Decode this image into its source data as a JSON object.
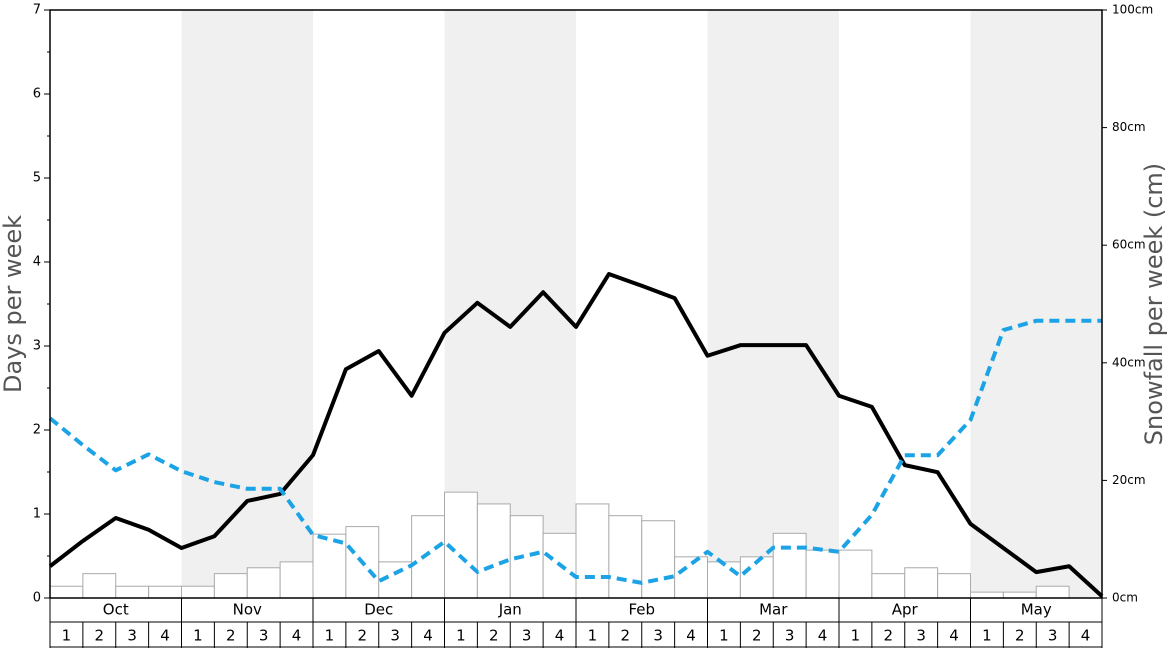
{
  "chart_data": {
    "type": "bar",
    "y_label": "Days per week",
    "y2_label": "Snowfall per week (cm)",
    "months": [
      "Oct",
      "Nov",
      "Dec",
      "Jan",
      "Feb",
      "Mar",
      "Apr",
      "May"
    ],
    "categories": [
      "1",
      "2",
      "3",
      "4",
      "1",
      "2",
      "3",
      "4",
      "1",
      "2",
      "3",
      "4",
      "1",
      "2",
      "3",
      "4",
      "1",
      "2",
      "3",
      "4",
      "1",
      "2",
      "3",
      "4",
      "1",
      "2",
      "3",
      "4",
      "1",
      "2",
      "3",
      "4"
    ],
    "values": [
      0.14,
      0.29,
      0.14,
      0.14,
      0.14,
      0.29,
      0.36,
      0.43,
      0.76,
      0.85,
      0.43,
      0.98,
      1.26,
      1.12,
      0.98,
      0.77,
      1.12,
      0.98,
      0.92,
      0.49,
      0.43,
      0.49,
      0.77,
      0.57,
      0.57,
      0.29,
      0.36,
      0.29,
      0.07,
      0.07,
      0.14,
      0
    ],
    "bar_color": "#ffffff",
    "bar_edge": "#aaaaaa",
    "band_color": "#f0f0f0",
    "xlim": [
      0,
      32
    ],
    "series": [
      {
        "type": "line",
        "axis": "y2",
        "color": "#000000",
        "dashed": false,
        "x": [
          0,
          1,
          2,
          3,
          4,
          5,
          6,
          7,
          8,
          9,
          10,
          11,
          12,
          13,
          14,
          15,
          16,
          17,
          18,
          19,
          20,
          21,
          22,
          23,
          24,
          25,
          26,
          27,
          28,
          29,
          30,
          31,
          32
        ],
        "values": [
          5.4,
          9.7,
          13.6,
          11.6,
          8.5,
          10.5,
          16.5,
          17.7,
          24.3,
          38.9,
          42.0,
          34.4,
          45.1,
          50.2,
          46.1,
          52.0,
          46.1,
          55.1,
          53.1,
          51.0,
          41.2,
          43.0,
          43.0,
          43.0,
          34.4,
          32.5,
          22.6,
          21.4,
          12.6,
          8.5,
          4.4,
          5.4,
          0.3
        ]
      },
      {
        "type": "line",
        "axis": "y",
        "color": "#1ca3e6",
        "dashed": true,
        "x": [
          0,
          1,
          2,
          3,
          4,
          5,
          6,
          7,
          8,
          9,
          10,
          11,
          12,
          13,
          14,
          15,
          16,
          17,
          18,
          19,
          20,
          21,
          22,
          23,
          24,
          25,
          26,
          27,
          28,
          29,
          30,
          31,
          32
        ],
        "values": [
          2.14,
          1.82,
          1.52,
          1.71,
          1.51,
          1.38,
          1.3,
          1.3,
          0.75,
          0.65,
          0.2,
          0.39,
          0.67,
          0.31,
          0.46,
          0.55,
          0.25,
          0.25,
          0.18,
          0.26,
          0.55,
          0.26,
          0.6,
          0.6,
          0.55,
          0.99,
          1.7,
          1.7,
          2.12,
          3.19,
          3.3,
          3.3,
          3.3
        ]
      }
    ],
    "ylim": [
      0,
      7
    ],
    "yticks": [
      0,
      1,
      2,
      3,
      4,
      5,
      6,
      7
    ],
    "yminorticks": [
      0.5,
      1.5,
      2.5,
      3.5,
      4.5,
      5.5,
      6.5
    ],
    "y2lim": [
      0,
      100
    ],
    "y2ticks": [
      {
        "value": 0,
        "label": "0cm"
      },
      {
        "value": 20,
        "label": "20cm"
      },
      {
        "value": 40,
        "label": "40cm"
      },
      {
        "value": 60,
        "label": "60cm"
      },
      {
        "value": 80,
        "label": "80cm"
      },
      {
        "value": 100,
        "label": "100cm"
      }
    ]
  }
}
